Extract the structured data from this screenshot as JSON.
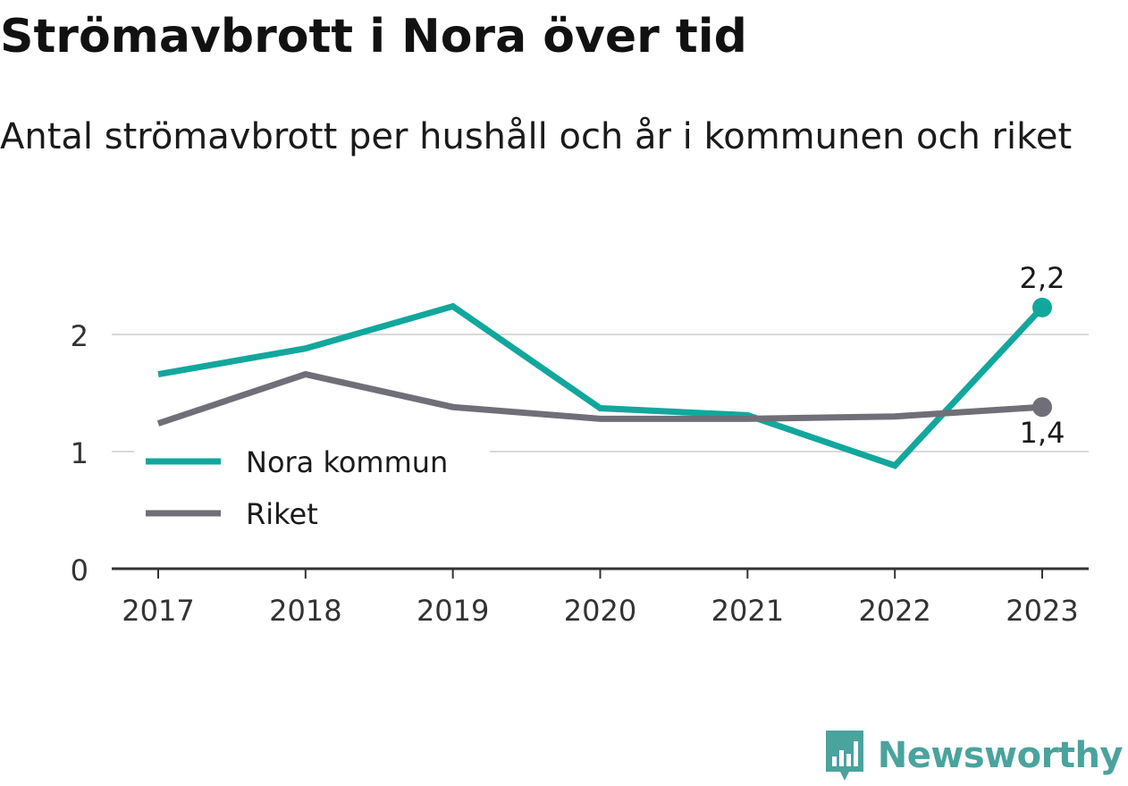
{
  "title": "Strömavbrott i Nora över tid",
  "subtitle": "Antal strömavbrott per hushåll och år i kommunen och riket",
  "brand": {
    "name": "Newsworthy",
    "icon": "newsworthy-logo-icon",
    "color": "#4aa39d"
  },
  "chart_data": {
    "type": "line",
    "title": "Strömavbrott i Nora över tid",
    "subtitle": "Antal strömavbrott per hushåll och år i kommunen och riket",
    "categories": [
      "2017",
      "2018",
      "2019",
      "2020",
      "2021",
      "2022",
      "2023"
    ],
    "y_ticks": [
      "0",
      "1",
      "2"
    ],
    "y_tick_values": [
      0,
      1,
      2
    ],
    "ylim": [
      0,
      2.6
    ],
    "grid": "horizontal",
    "legend_position": "bottom-left",
    "series": [
      {
        "name": "Nora kommun",
        "color": "#12a79d",
        "values": [
          1.66,
          1.88,
          2.24,
          1.37,
          1.31,
          0.88,
          2.23
        ],
        "end_label": "2,2"
      },
      {
        "name": "Riket",
        "color": "#706f77",
        "values": [
          1.24,
          1.66,
          1.38,
          1.28,
          1.28,
          1.3,
          1.38
        ],
        "end_label": "1,4"
      }
    ]
  }
}
